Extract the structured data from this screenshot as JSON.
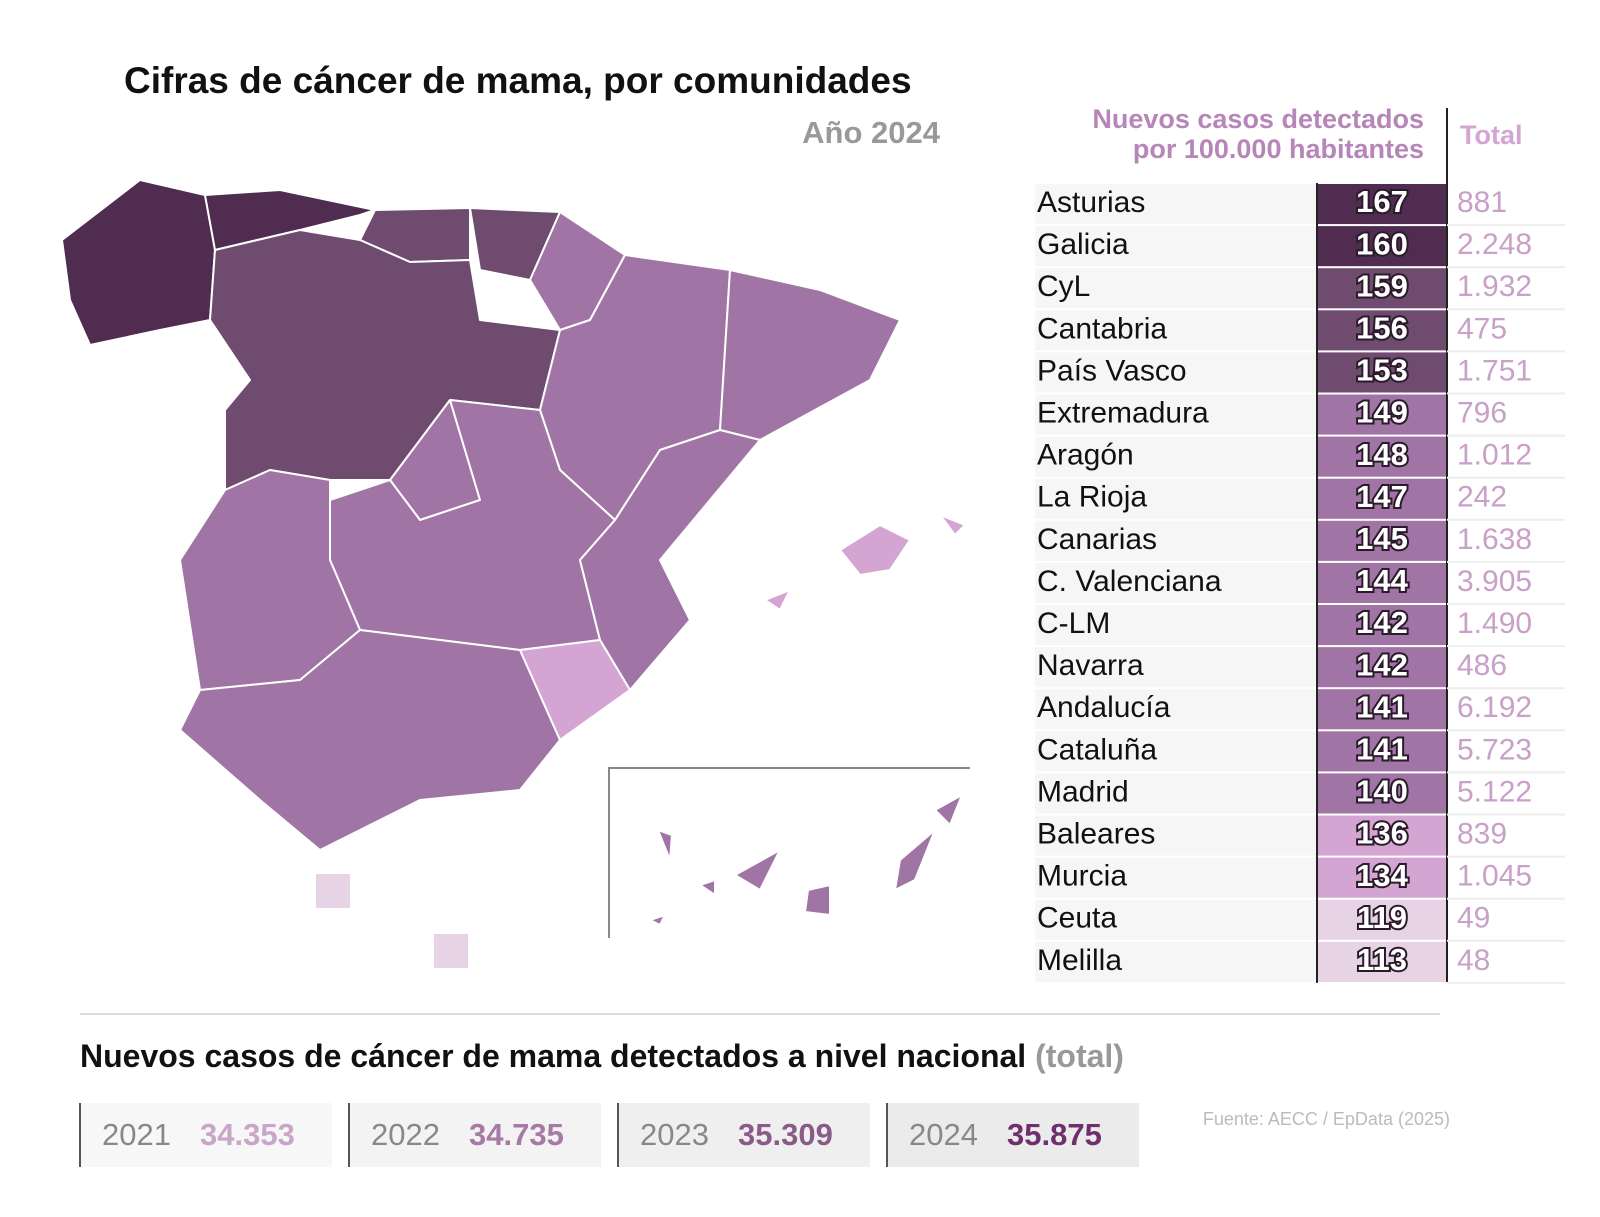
{
  "header": {
    "title": "Cifras de cáncer de mama, por comunidades",
    "subtitle": "Año 2024"
  },
  "table": {
    "header": {
      "rate": [
        "Nuevos casos detectados",
        "por 100.000 habitantes"
      ],
      "total": "Total"
    },
    "rows": [
      {
        "name": "Asturias",
        "rate": 167,
        "total": "881",
        "color": "#4f2c50"
      },
      {
        "name": "Galicia",
        "rate": 160,
        "total": "2.248",
        "color": "#4f2c50"
      },
      {
        "name": "CyL",
        "rate": 159,
        "total": "1.932",
        "color": "#6f4b6f"
      },
      {
        "name": "Cantabria",
        "rate": 156,
        "total": "475",
        "color": "#6f4b6f"
      },
      {
        "name": "País Vasco",
        "rate": 153,
        "total": "1.751",
        "color": "#6f4b6f"
      },
      {
        "name": "Extremadura",
        "rate": 149,
        "total": "796",
        "color": "#a074a4"
      },
      {
        "name": "Aragón",
        "rate": 148,
        "total": "1.012",
        "color": "#a074a4"
      },
      {
        "name": "La Rioja",
        "rate": 147,
        "total": "242",
        "color": "#a074a4"
      },
      {
        "name": "Canarias",
        "rate": 145,
        "total": "1.638",
        "color": "#a074a4"
      },
      {
        "name": "C. Valenciana",
        "rate": 144,
        "total": "3.905",
        "color": "#a074a4"
      },
      {
        "name": "C-LM",
        "rate": 142,
        "total": "1.490",
        "color": "#a074a4"
      },
      {
        "name": "Navarra",
        "rate": 142,
        "total": "486",
        "color": "#a074a4"
      },
      {
        "name": "Andalucía",
        "rate": 141,
        "total": "6.192",
        "color": "#a074a4"
      },
      {
        "name": "Cataluña",
        "rate": 141,
        "total": "5.723",
        "color": "#a074a4"
      },
      {
        "name": "Madrid",
        "rate": 140,
        "total": "5.122",
        "color": "#a074a4"
      },
      {
        "name": "Baleares",
        "rate": 136,
        "total": "839",
        "color": "#d4a4d2"
      },
      {
        "name": "Murcia",
        "rate": 134,
        "total": "1.045",
        "color": "#d4a4d2"
      },
      {
        "name": "Ceuta",
        "rate": 119,
        "total": "49",
        "color": "#e7d3e6"
      },
      {
        "name": "Melilla",
        "rate": 113,
        "total": "48",
        "color": "#e7d3e6"
      }
    ]
  },
  "national": {
    "title": "Nuevos casos de cáncer de mama detectados a nivel nacional",
    "note": "(total)",
    "years": [
      {
        "year": "2021",
        "total": "34.353",
        "color": "#c9a6c8"
      },
      {
        "year": "2022",
        "total": "34.735",
        "color": "#a77aa6"
      },
      {
        "year": "2023",
        "total": "35.309",
        "color": "#8a5a89"
      },
      {
        "year": "2024",
        "total": "35.875",
        "color": "#6e2f6c"
      }
    ]
  },
  "source": "Fuente: AECC / EpData (2025)"
}
